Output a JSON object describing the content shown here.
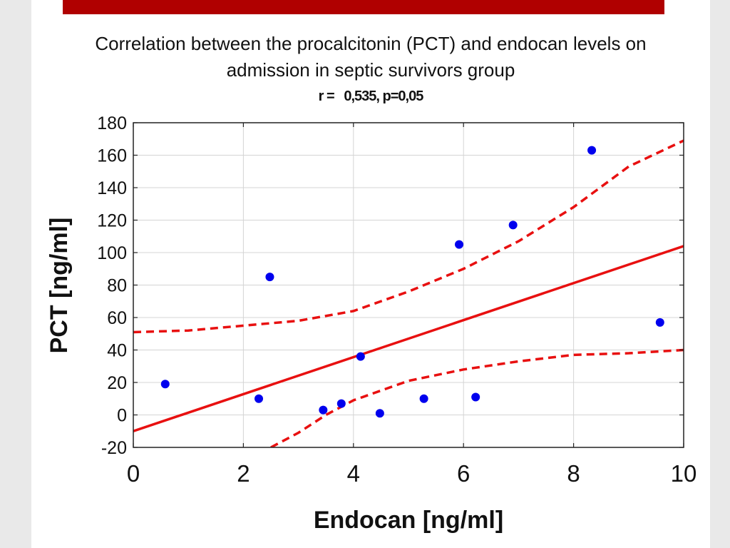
{
  "colors": {
    "accent_bar": "#b00000",
    "points": "#0000ee",
    "fit": "#e81010"
  },
  "header": {
    "title_line1": "Correlation between the procalcitonin (PCT) and endocan levels on",
    "title_line2": "admission in septic survivors group",
    "stat_r": "r =",
    "stat_values": "0,535, p=0,05"
  },
  "chart_data": {
    "type": "scatter",
    "xlabel": "Endocan [ng/ml]",
    "ylabel": "PCT [ng/ml]",
    "xlim": [
      0,
      10
    ],
    "ylim": [
      -20,
      180
    ],
    "xticks": [
      0,
      2,
      4,
      6,
      8,
      10
    ],
    "yticks": [
      -20,
      0,
      20,
      40,
      60,
      80,
      100,
      120,
      140,
      160,
      180
    ],
    "grid": true,
    "points": [
      {
        "x": 0.58,
        "y": 19
      },
      {
        "x": 2.28,
        "y": 10
      },
      {
        "x": 2.48,
        "y": 85
      },
      {
        "x": 3.45,
        "y": 3
      },
      {
        "x": 3.78,
        "y": 7
      },
      {
        "x": 4.13,
        "y": 36
      },
      {
        "x": 4.48,
        "y": 1
      },
      {
        "x": 5.28,
        "y": 10
      },
      {
        "x": 5.92,
        "y": 105
      },
      {
        "x": 6.22,
        "y": 11
      },
      {
        "x": 6.9,
        "y": 117
      },
      {
        "x": 8.33,
        "y": 163
      },
      {
        "x": 9.57,
        "y": 57
      }
    ],
    "regression_line": [
      [
        0,
        -10
      ],
      [
        10,
        104
      ]
    ],
    "confidence_upper": [
      [
        0,
        51
      ],
      [
        1,
        52
      ],
      [
        2,
        55
      ],
      [
        3,
        58
      ],
      [
        4,
        64
      ],
      [
        5,
        76
      ],
      [
        6,
        90
      ],
      [
        7,
        107
      ],
      [
        8,
        128
      ],
      [
        9,
        153
      ],
      [
        10,
        169
      ]
    ],
    "confidence_lower": [
      [
        2.5,
        -20
      ],
      [
        3,
        -11
      ],
      [
        3.5,
        0
      ],
      [
        4,
        9
      ],
      [
        5,
        21
      ],
      [
        6,
        28
      ],
      [
        7,
        33
      ],
      [
        8,
        37
      ],
      [
        9,
        38
      ],
      [
        10,
        40
      ]
    ]
  }
}
